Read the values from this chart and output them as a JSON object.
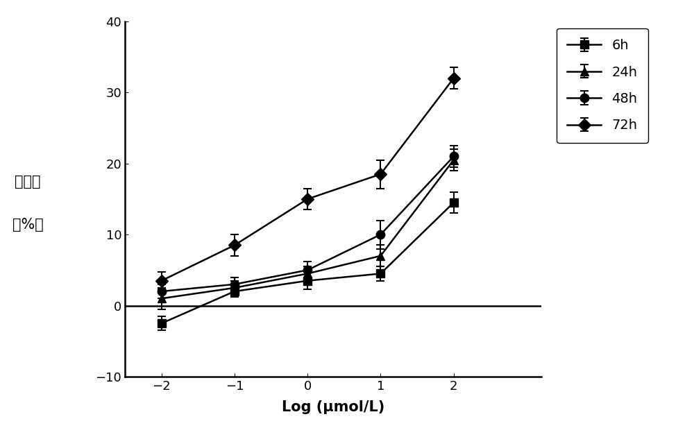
{
  "x": [
    -2,
    -1,
    0,
    1,
    2
  ],
  "series": {
    "6h": {
      "y": [
        -2.5,
        2.0,
        3.5,
        4.5,
        14.5
      ],
      "yerr": [
        1.0,
        0.8,
        1.2,
        1.0,
        1.5
      ],
      "marker": "s",
      "label": "6h"
    },
    "24h": {
      "y": [
        1.0,
        2.5,
        4.5,
        7.0,
        20.5
      ],
      "yerr": [
        1.5,
        1.0,
        1.0,
        1.5,
        1.5
      ],
      "marker": "^",
      "label": "24h"
    },
    "48h": {
      "y": [
        2.0,
        3.0,
        5.0,
        10.0,
        21.0
      ],
      "yerr": [
        1.0,
        1.0,
        1.2,
        2.0,
        1.5
      ],
      "marker": "o",
      "label": "48h"
    },
    "72h": {
      "y": [
        3.5,
        8.5,
        15.0,
        18.5,
        32.0
      ],
      "yerr": [
        1.2,
        1.5,
        1.5,
        2.0,
        1.5
      ],
      "marker": "D",
      "label": "72h"
    }
  },
  "xlim": [
    -2.5,
    3.2
  ],
  "ylim": [
    -10,
    40
  ],
  "xticks": [
    -2,
    -1,
    0,
    1,
    2
  ],
  "yticks": [
    -10,
    0,
    10,
    20,
    30,
    40
  ],
  "xlabel": "Log (μmol/L)",
  "ylabel_line1": "抑制率",
  "ylabel_line2": "（%）",
  "color": "#000000",
  "linewidth": 1.8,
  "markersize": 9,
  "legend_fontsize": 14,
  "xlabel_fontsize": 15,
  "ylabel_fontsize": 15,
  "tick_fontsize": 13
}
